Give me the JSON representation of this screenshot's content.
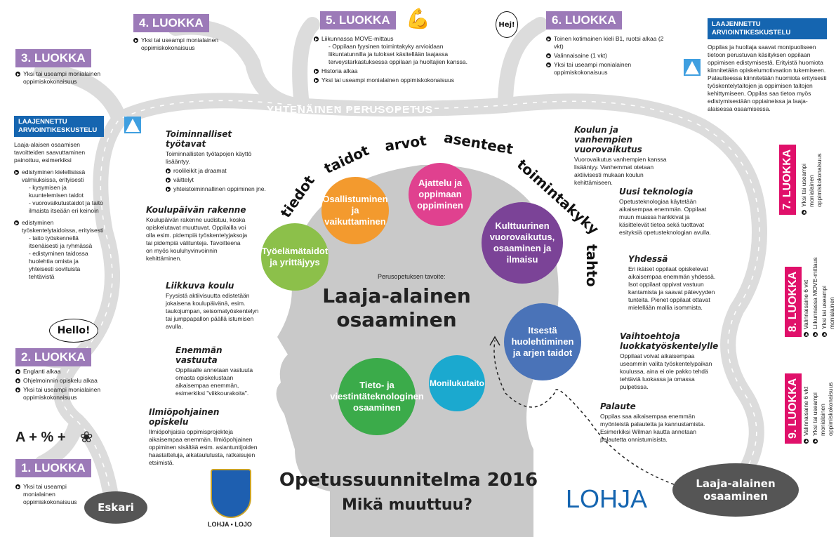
{
  "road_label": "YHTENÄINEN PERUSOPETUS",
  "colors": {
    "grade_low": "#9c7ab8",
    "grade_high": "#e0106a",
    "road": "#dcdcdc",
    "head": "#c8c8c8",
    "blue_box": "#1565b0",
    "lohja_blue": "#1565b0"
  },
  "grades": [
    {
      "label": "1. LUOKKA",
      "items": [
        "Yksi tai useampi monialainen oppimiskokonaisuus"
      ]
    },
    {
      "label": "2. LUOKKA",
      "items": [
        "Englanti alkaa",
        "Ohjelmoinnin opiskelu alkaa",
        "Yksi tai useampi monialainen oppimiskokonaisuus"
      ]
    },
    {
      "label": "3. LUOKKA",
      "items": [
        "Yksi tai useampi monialainen oppimiskokonaisuus"
      ]
    },
    {
      "label": "4. LUOKKA",
      "items": [
        "Yksi tai useampi monialainen oppimiskokonaisuus"
      ]
    },
    {
      "label": "5. LUOKKA",
      "items": [
        "Liikunnassa MOVE-mittaus",
        "Historia alkaa",
        "Yksi tai useampi monialainen oppimiskokonaisuus"
      ],
      "sub": "- Oppilaan fyysinen toimintakyky arvioidaan liikuntatunnilla ja tulokset käsitellään laajassa terveystarkastuksessa oppilaan ja huoltajien kanssa."
    },
    {
      "label": "6. LUOKKA",
      "items": [
        "Toinen kotimainen kieli B1, ruotsi alkaa (2 vkt)",
        "Valinnaisaine (1 vkt)",
        "Yksi tai useampi monialainen oppimiskokonaisuus"
      ]
    },
    {
      "label": "7. LUOKKA",
      "items": [
        "Yksi tai useampi monialainen oppimiskokonaisuus"
      ]
    },
    {
      "label": "8. LUOKKA",
      "items": [
        "Valinnaisaine 6 vkt",
        "Liikunnassa MOVE-mittaus",
        "Yksi tai useampi monialainen oppimiskokonaisuus"
      ]
    },
    {
      "label": "9. LUOKKA",
      "items": [
        "Valinnaisaine 6 vkt",
        "Yksi tai useampi monialainen oppimiskokonaisuus"
      ]
    }
  ],
  "assessment_left": {
    "title": "LAAJENNETTU ARVIOINTIKESKUSTELU",
    "intro": "Laaja-alaisen osaamisen tavoitteiden saavuttaminen painottuu, esimerkiksi",
    "b1": "edistyminen kielellisissä valmiuksissa, erityisesti",
    "b1s1": "- kysymisen ja kuuntelemisen taidot",
    "b1s2": "- vuorovaikutustaidot ja taito ilmaista itseään eri keinoin",
    "b2": "edistyminen työskentelytaidoissa, erityisesti",
    "b2s1": "- taito työskennellä itsenäisesti ja ryhmässä",
    "b2s2": "- edistyminen taidossa huolehtia omista ja yhteisesti sovituista tehtävistä"
  },
  "assessment_right": {
    "title": "LAAJENNETTU ARVIOINTIKESKUSTELU",
    "text": "Oppilas ja huoltaja saavat monipuoliseen tietoon perustuvan käsityksen oppilaan oppimisen edistymisestä. Erityistä huomiota kiinnitetään opiskelumotivaation tukemiseen. Palautteessa kiinnitetään huomiota erityisesti työskentelytaitojen ja oppimisen taitojen kehittymiseen. Oppilas saa tietoa myös edistymisestään oppiaineissa ja laaja-alaisessa osaamisessa."
  },
  "changes": {
    "toiminnalliset": {
      "title": "Toiminnalliset työtavat",
      "text": "Toiminnallisten työtapojen käyttö lisääntyy.",
      "items": [
        "roolileikit ja draamat",
        "väittelyt",
        "yhteistoiminnallinen oppiminen jne."
      ]
    },
    "koulupaiva": {
      "title": "Koulupäivän rakenne",
      "text": "Koulupäivän rakenne uudistuu, koska opiskelutavat muuttuvat. Oppilailla voi olla esim. pidempiä työskentelyjaksoja tai pidempiä välitunteja. Tavoitteena on myös kouluhyvinvoinnin kehittäminen."
    },
    "liikkuva": {
      "title": "Liikkuva koulu",
      "text": "Fyysistä aktiivisuutta edistetään jokaisena koulupäivänä, esim. taukojumpan, seisomatyöskentelyn tai jumppapallon päällä istumisen avulla."
    },
    "vastuu": {
      "title": "Enemmän vastuuta",
      "text": "Oppilaalle annetaan vastuuta omasta opiskelustaan aikaisempaa enemmän, esimerkiksi \"viikkourakoita\"."
    },
    "ilmio": {
      "title": "Ilmiöpohjainen opiskelu",
      "text": "Ilmiöpohjaisia oppimisprojekteja aikaisempaa enemmän. Ilmiöpohjainen oppiminen sisältää esim. asiantuntijoiden haastatteluja, aikataulutusta, ratkaisujen etsimistä."
    },
    "vanhemmat": {
      "title": "Koulun ja vanhempien vuorovaikutus",
      "text": "Vuorovaikutus vanhempien kanssa lisääntyy. Vanhemmat otetaan aktiivisesti mukaan koulun kehittämiseen."
    },
    "teknologia": {
      "title": "Uusi teknologia",
      "text": "Opetusteknologiaa käytetään aikaisempaa enemmän. Oppilaat muun muassa hankkivat ja käsittelevät tietoa sekä tuottavat esityksiä opetusteknologian avulla."
    },
    "yhdessa": {
      "title": "Yhdessä",
      "text": "Eri ikäiset oppilaat opiskelevat aikaisempaa enemmän yhdessä. Isot oppilaat oppivat vastuun kantamista ja saavat pätevyyden tunteita. Pienet oppilaat ottavat mielellään mallia isommista."
    },
    "vaihtoehtoja": {
      "title": "Vaihtoehtoja luokkatyöskentelylle",
      "text": "Oppilaat voivat aikaisempaa useammin valita työskentelypaikan koulussa, aina ei ole pakko tehdä tehtäviä luokassa ja omassa pulpetissa."
    },
    "palaute": {
      "title": "Palaute",
      "text": "Oppilas saa aikaisempaa enemmän myönteistä palautetta ja kannustamista. Esimerkiksi Wilman kautta annetaan palautetta onnistumisista."
    }
  },
  "words": [
    "tiedot",
    "taidot",
    "arvot",
    "asenteet",
    "toimintakyky",
    "tahto"
  ],
  "bubbles": [
    {
      "label": "Osallistuminen ja vaikuttaminen",
      "color": "#f39a2e"
    },
    {
      "label": "Ajattelu ja oppimaan oppiminen",
      "color": "#e0418f"
    },
    {
      "label": "Kulttuurinen vuorovaikutus, osaaminen ja ilmaisu",
      "color": "#7b4397"
    },
    {
      "label": "Työelämätaidot ja yrittäjyys",
      "color": "#8cc04a"
    },
    {
      "label": "Itsestä huolehtiminen ja arjen taidot",
      "color": "#4a73b8"
    },
    {
      "label": "Monilukutaito",
      "color": "#1ba9cf"
    },
    {
      "label": "Tieto- ja viestintäteknologinen osaaminen",
      "color": "#3bab4a"
    }
  ],
  "center": {
    "pre": "Perusopetuksen tavoite:",
    "title": "Laaja-alainen osaaminen"
  },
  "footer": {
    "title": "Opetussuunnitelma 2016",
    "subtitle": "Mikä muuttuu?",
    "logo": "LOHJA",
    "crest_text": "LOHJA • LOJO"
  },
  "ovals": {
    "start": "Eskari",
    "end": "Laaja-alainen osaaminen"
  },
  "doodles": {
    "hello": "Hello!",
    "hej": "Hej!",
    "math": "A + % +"
  }
}
